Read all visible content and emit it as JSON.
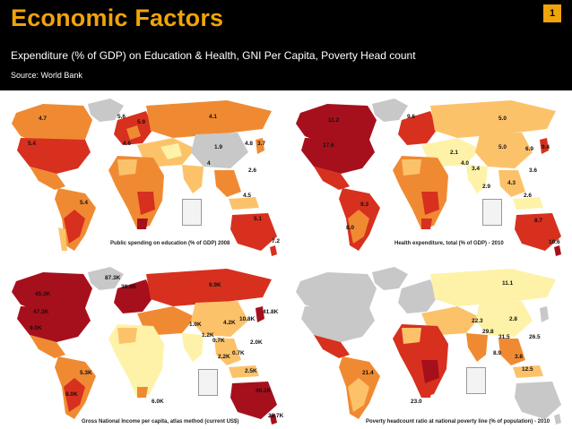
{
  "header": {
    "title": "Economic Factors",
    "slide_number": "1",
    "subtitle": "Expenditure (% of GDP) on Education & Health, GNI Per Capita, Poverty Head count",
    "source": "Source: World Bank"
  },
  "maps": [
    {
      "caption": "Public spending on education (% of GDP) 2008",
      "labels": [
        "4.7",
        "5.6",
        "4.1",
        "5.9",
        "5.4",
        "4.6",
        "1.9",
        "4.8",
        "3.7",
        "4",
        "2.6",
        "5.4",
        "4.5",
        "5.1",
        "7.2"
      ]
    },
    {
      "caption": "Health expenditure, total (% of GDP) - 2010",
      "labels": [
        "11.2",
        "9.6",
        "5.0",
        "17.6",
        "2.1",
        "5.0",
        "6.9",
        "9.4",
        "4.0",
        "3.4",
        "3.6",
        "2.9",
        "4.3",
        "2.6",
        "9.3",
        "8.0",
        "8.7",
        "10.6"
      ]
    },
    {
      "caption": "Gross National Income per capita, atlas method (current US$)",
      "labels": [
        "87.3K",
        "9.9K",
        "38.8K",
        "45.3K",
        "47.3K",
        "1.0K",
        "4.2K",
        "10.8K",
        "41.8K",
        "1.2K",
        "0.7K",
        "2.0K",
        "2.2K",
        "0.7K",
        "9.0K",
        "5.3K",
        "2.5K",
        "8.0K",
        "6.0K",
        "46.2K",
        "28.7K"
      ]
    },
    {
      "caption": "Poverty headcount ratio at national poverty line (% of population) - 2010",
      "labels": [
        "11.1",
        "2.8",
        "22.3",
        "29.8",
        "31.5",
        "26.5",
        "8.9",
        "3.8",
        "21.4",
        "12.5",
        "23.0"
      ]
    }
  ],
  "colors": {
    "header_bg": "#000000",
    "title": "#f0a30a",
    "no_data": "#c8c8c8",
    "ocean": "#ffffff",
    "dark_red": "#a6101c",
    "red": "#d7301f",
    "orange": "#f08a32",
    "light_orange": "#fcc26a",
    "yellow": "#fdf2a8"
  }
}
